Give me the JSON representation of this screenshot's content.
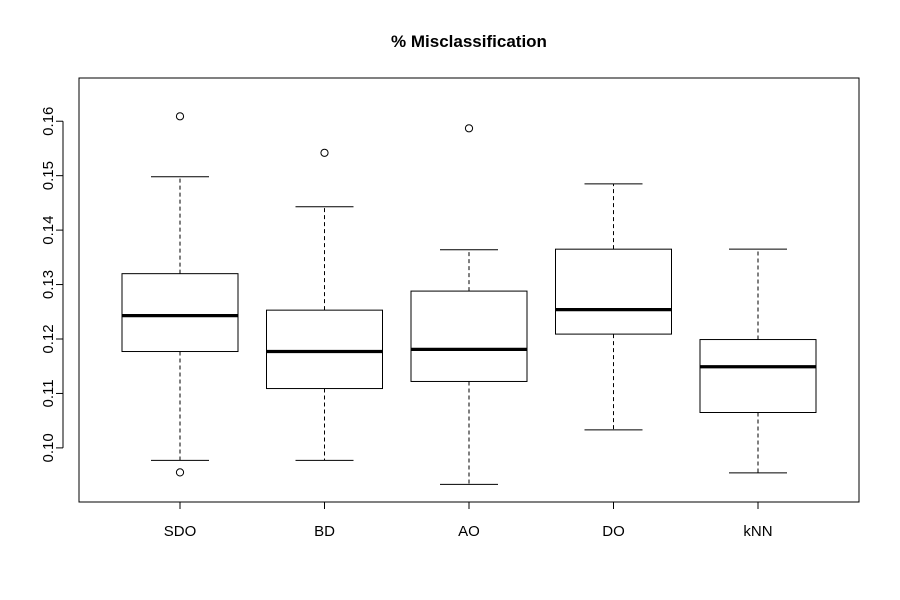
{
  "chart_data": {
    "type": "boxplot",
    "title": "% Misclassification",
    "xlabel": "",
    "ylabel": "",
    "ylim": [
      0.093,
      0.165
    ],
    "yticks": [
      0.1,
      0.11,
      0.12,
      0.13,
      0.14,
      0.15,
      0.16
    ],
    "ytick_labels": [
      "0.10",
      "0.11",
      "0.12",
      "0.13",
      "0.14",
      "0.15",
      "0.16"
    ],
    "categories": [
      "SDO",
      "BD",
      "AO",
      "DO",
      "kNN"
    ],
    "boxes": [
      {
        "name": "SDO",
        "whisker_low": 0.0977,
        "q1": 0.1177,
        "median": 0.1243,
        "q3": 0.132,
        "whisker_high": 0.1498,
        "outliers": [
          0.0955,
          0.1609
        ]
      },
      {
        "name": "BD",
        "whisker_low": 0.0977,
        "q1": 0.1109,
        "median": 0.1177,
        "q3": 0.1253,
        "whisker_high": 0.1443,
        "outliers": [
          0.1542
        ]
      },
      {
        "name": "AO",
        "whisker_low": 0.0933,
        "q1": 0.1122,
        "median": 0.1181,
        "q3": 0.1288,
        "whisker_high": 0.1364,
        "outliers": [
          0.1587
        ]
      },
      {
        "name": "DO",
        "whisker_low": 0.1033,
        "q1": 0.1209,
        "median": 0.1254,
        "q3": 0.1365,
        "whisker_high": 0.1485,
        "outliers": []
      },
      {
        "name": "kNN",
        "whisker_low": 0.0954,
        "q1": 0.1065,
        "median": 0.1149,
        "q3": 0.1199,
        "whisker_high": 0.1365,
        "outliers": []
      }
    ],
    "grid": false,
    "legend": "none",
    "colors": {
      "stroke": "#000000",
      "box_fill": "#ffffff",
      "background": "#ffffff"
    }
  }
}
